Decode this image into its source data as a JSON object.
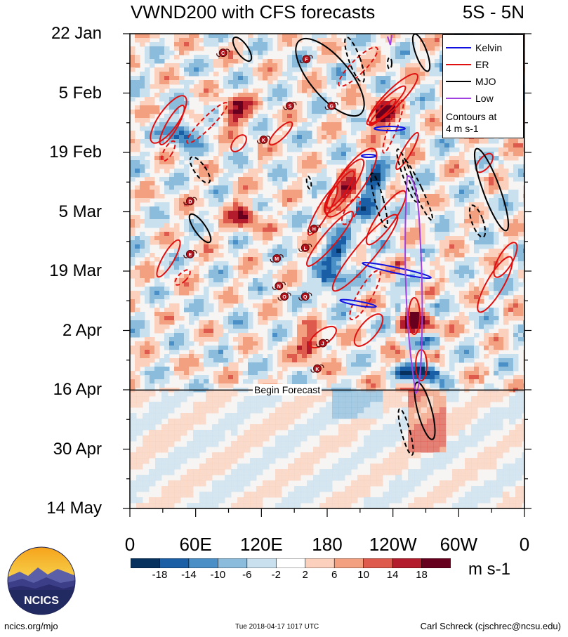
{
  "title": "VWND200 with CFS forecasts",
  "region": "5S - 5N",
  "annotation_begin": "Begin Forecast",
  "legend": {
    "items": [
      {
        "label": "Kelvin",
        "color": "#1010e0"
      },
      {
        "label": "ER",
        "color": "#e01010"
      },
      {
        "label": "MJO",
        "color": "#000000"
      },
      {
        "label": "Low",
        "color": "#a040e0"
      }
    ],
    "note_line1": "Contours at",
    "note_line2": "4 m s-1"
  },
  "units": "m s-1",
  "footer": {
    "left": "ncics.org/mjo",
    "mid": "Tue 2018-04-17 1017 UTC",
    "right": "Carl Schreck (cjschrec@ncsu.edu)"
  },
  "logo_text": "NCICS",
  "chart_data": {
    "type": "heatmap",
    "title": "VWND200 with CFS forecasts",
    "subtitle": "5S - 5N",
    "x_tick_labels": [
      "0",
      "60E",
      "120E",
      "180",
      "120W",
      "60W",
      "0"
    ],
    "x_tick_lons": [
      0,
      60,
      120,
      180,
      240,
      300,
      360
    ],
    "xlim": [
      0,
      360
    ],
    "y_tick_labels": [
      "22 Jan",
      "5 Feb",
      "19 Feb",
      "5 Mar",
      "19 Mar",
      "2 Apr",
      "16 Apr",
      "30 Apr",
      "14 May"
    ],
    "y_tick_days": [
      0,
      14,
      28,
      42,
      56,
      70,
      84,
      98,
      112
    ],
    "ylim_days": [
      0,
      112
    ],
    "forecast_start_day": 84,
    "colorbar": {
      "levels": [
        "-18",
        "-14",
        "-10",
        "-6",
        "-2",
        "2",
        "6",
        "10",
        "14",
        "18"
      ],
      "colors": [
        "#06305e",
        "#1a5fa6",
        "#4a90c6",
        "#8bbcdc",
        "#c9e0ef",
        "#ffffff",
        "#fbd0bc",
        "#f2a080",
        "#dd5a4c",
        "#b21c2c",
        "#67001f"
      ]
    },
    "features": [
      {
        "type": "tc",
        "label": "C",
        "lon": 85,
        "day": 4.5
      },
      {
        "type": "tc",
        "label": "F",
        "lon": 161,
        "day": 6
      },
      {
        "type": "tc",
        "label": "S",
        "lon": 146,
        "day": 17
      },
      {
        "type": "tc",
        "label": "G",
        "lon": 184,
        "day": 17
      },
      {
        "type": "tc",
        "label": "K",
        "lon": 122,
        "day": 25
      },
      {
        "type": "tc",
        "label": "D",
        "lon": 55,
        "day": 39.5
      },
      {
        "type": "tc",
        "label": "E",
        "lon": 55,
        "day": 52
      },
      {
        "type": "tc",
        "label": "H",
        "lon": 168,
        "day": 46
      },
      {
        "type": "tc",
        "label": "L",
        "lon": 160,
        "day": 50.5
      },
      {
        "type": "tc",
        "label": "M",
        "lon": 134,
        "day": 53
      },
      {
        "type": "tc",
        "label": "N",
        "lon": 136,
        "day": 59.5
      },
      {
        "type": "tc",
        "label": "O",
        "lon": 141,
        "day": 62
      },
      {
        "type": "tc",
        "label": "Q",
        "lon": 160,
        "day": 62
      },
      {
        "type": "tc",
        "label": "J",
        "lon": 176,
        "day": 73
      },
      {
        "type": "tc",
        "label": "K",
        "lon": 171,
        "day": 79
      }
    ]
  }
}
